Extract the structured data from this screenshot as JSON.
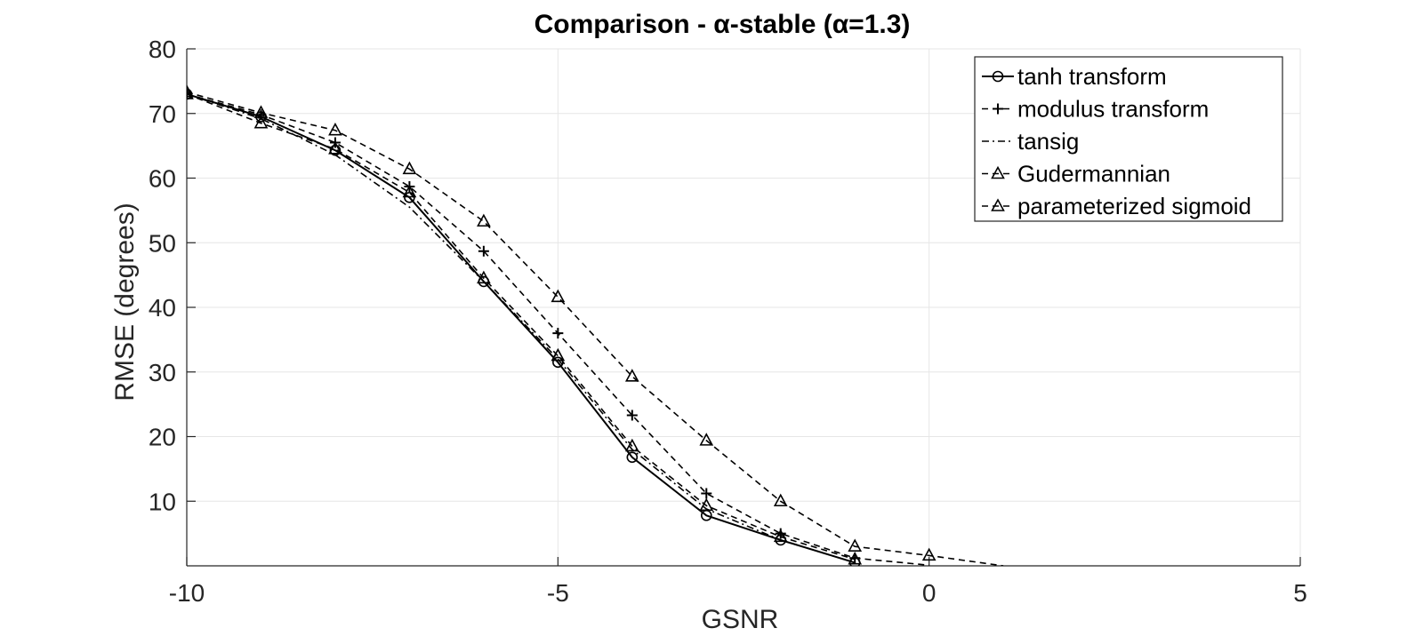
{
  "chart_data": {
    "type": "line",
    "title": "Comparison - α-stable (α=1.3)",
    "xlabel": "GSNR",
    "ylabel": "RMSE (degrees)",
    "xlim": [
      -10,
      5
    ],
    "ylim": [
      0,
      80
    ],
    "xticks": [
      -10,
      -5,
      0,
      5
    ],
    "yticks": [
      10,
      20,
      30,
      40,
      50,
      60,
      70,
      80
    ],
    "grid": true,
    "legend_position": "top-right",
    "x": [
      -10,
      -9,
      -8,
      -7,
      -6,
      -5,
      -4,
      -3,
      -2,
      -1,
      0,
      1
    ],
    "series": [
      {
        "name": "tanh transform",
        "line_style": "solid",
        "marker": "circle",
        "values": [
          73,
          69.5,
          64.3,
          57,
          44,
          31.5,
          16.8,
          7.8,
          4,
          0.5,
          null,
          null
        ]
      },
      {
        "name": "modulus transform",
        "line_style": "dashed",
        "marker": "plus",
        "values": [
          73,
          69.8,
          65.5,
          58.7,
          48.7,
          36,
          23.3,
          11.2,
          5,
          1.2,
          0.1,
          null
        ]
      },
      {
        "name": "tansig",
        "line_style": "dashdot",
        "marker": "none",
        "values": [
          73,
          69.2,
          63.6,
          55.5,
          44,
          32,
          18,
          8.8,
          4,
          0.5,
          null,
          null
        ]
      },
      {
        "name": "Gudermannian",
        "line_style": "dashed",
        "marker": "triangle",
        "values": [
          73,
          68.5,
          64.5,
          57.8,
          44.5,
          32.5,
          18.5,
          9.3,
          4.5,
          1,
          null,
          null
        ]
      },
      {
        "name": "parameterized sigmoid",
        "line_style": "dashed",
        "marker": "triangle",
        "values": [
          73.3,
          70.1,
          67.4,
          61.4,
          53.3,
          41.6,
          29.3,
          19.4,
          10,
          3,
          1.6,
          0
        ]
      }
    ]
  }
}
